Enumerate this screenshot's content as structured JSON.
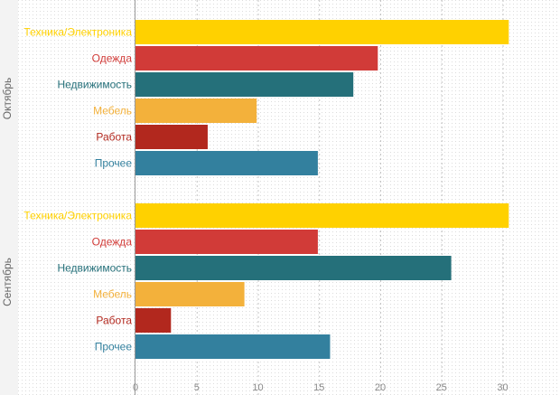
{
  "chart_data": {
    "type": "bar",
    "orientation": "horizontal",
    "x": {
      "ticks": [
        0,
        5,
        10,
        15,
        20,
        25,
        30
      ],
      "range": [
        0,
        35
      ]
    },
    "grid": true,
    "groups": [
      {
        "name": "Октябрь",
        "bars": [
          {
            "category": "Техника/Электроника",
            "value": 30.5,
            "color": "#FFD100"
          },
          {
            "category": "Одежда",
            "value": 19.8,
            "color": "#D13B38"
          },
          {
            "category": "Недвижимость",
            "value": 17.8,
            "color": "#25707A"
          },
          {
            "category": "Мебель",
            "value": 9.9,
            "color": "#F3B13B"
          },
          {
            "category": "Работа",
            "value": 5.9,
            "color": "#B2281E"
          },
          {
            "category": "Прочее",
            "value": 14.9,
            "color": "#33809E"
          }
        ]
      },
      {
        "name": "Сентябрь",
        "bars": [
          {
            "category": "Техника/Электроника",
            "value": 30.5,
            "color": "#FFD100"
          },
          {
            "category": "Одежда",
            "value": 14.9,
            "color": "#D13B38"
          },
          {
            "category": "Недвижимость",
            "value": 25.8,
            "color": "#25707A"
          },
          {
            "category": "Мебель",
            "value": 8.9,
            "color": "#F3B13B"
          },
          {
            "category": "Работа",
            "value": 2.9,
            "color": "#B2281E"
          },
          {
            "category": "Прочее",
            "value": 15.9,
            "color": "#33809E"
          }
        ]
      }
    ]
  }
}
